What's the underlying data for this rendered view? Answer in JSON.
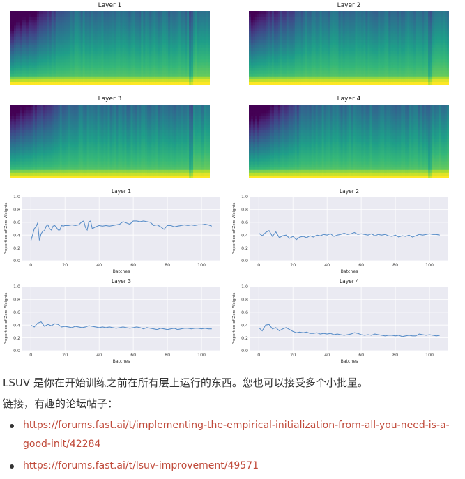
{
  "heatmaps": [
    {
      "title": "Layer 1"
    },
    {
      "title": "Layer 2"
    },
    {
      "title": "Layer 3"
    },
    {
      "title": "Layer 4"
    }
  ],
  "colors": {
    "line": "#5b8fc9",
    "chart_bg": "#eaeaf2",
    "text": "#333333",
    "link": "#c04a3a",
    "viridis_dark": "#440154",
    "viridis_mid": "#21918c",
    "viridis_light": "#fde725"
  },
  "chart_data": [
    {
      "type": "line",
      "title": "Layer 1",
      "xlabel": "Batches",
      "ylabel": "Proportion of Zero Weights",
      "xlim": [
        -5,
        111
      ],
      "ylim": [
        0.0,
        1.0
      ],
      "xticks": [
        0,
        20,
        40,
        60,
        80,
        100
      ],
      "yticks": [
        0.0,
        0.2,
        0.4,
        0.6,
        0.8,
        1.0
      ],
      "x": [
        0,
        1,
        2,
        3,
        4,
        5,
        6,
        7,
        8,
        9,
        10,
        11,
        12,
        13,
        14,
        15,
        16,
        17,
        18,
        19,
        20,
        22,
        24,
        26,
        28,
        30,
        31,
        32,
        33,
        34,
        35,
        36,
        38,
        40,
        42,
        44,
        46,
        48,
        50,
        52,
        54,
        56,
        58,
        60,
        62,
        64,
        66,
        68,
        70,
        72,
        74,
        76,
        78,
        80,
        82,
        84,
        86,
        88,
        90,
        92,
        94,
        96,
        98,
        100,
        102,
        104,
        106
      ],
      "y": [
        0.31,
        0.4,
        0.5,
        0.53,
        0.59,
        0.32,
        0.42,
        0.46,
        0.47,
        0.54,
        0.56,
        0.5,
        0.48,
        0.54,
        0.55,
        0.52,
        0.48,
        0.48,
        0.55,
        0.54,
        0.55,
        0.55,
        0.56,
        0.55,
        0.56,
        0.61,
        0.62,
        0.52,
        0.48,
        0.61,
        0.62,
        0.5,
        0.53,
        0.55,
        0.54,
        0.55,
        0.54,
        0.55,
        0.56,
        0.57,
        0.61,
        0.59,
        0.57,
        0.62,
        0.62,
        0.61,
        0.62,
        0.61,
        0.6,
        0.55,
        0.56,
        0.53,
        0.49,
        0.55,
        0.55,
        0.53,
        0.54,
        0.55,
        0.56,
        0.55,
        0.56,
        0.55,
        0.56,
        0.56,
        0.57,
        0.56,
        0.54
      ]
    },
    {
      "type": "line",
      "title": "Layer 2",
      "xlabel": "Batches",
      "ylabel": "Proportion of Zero Weights",
      "xlim": [
        -5,
        111
      ],
      "ylim": [
        0.0,
        1.0
      ],
      "xticks": [
        0,
        20,
        40,
        60,
        80,
        100
      ],
      "yticks": [
        0.0,
        0.2,
        0.4,
        0.6,
        0.8,
        1.0
      ],
      "x": [
        0,
        2,
        4,
        6,
        8,
        10,
        12,
        14,
        16,
        18,
        20,
        22,
        24,
        26,
        28,
        30,
        32,
        34,
        36,
        38,
        40,
        42,
        44,
        46,
        48,
        50,
        52,
        54,
        56,
        58,
        60,
        62,
        64,
        66,
        68,
        70,
        72,
        74,
        76,
        78,
        80,
        82,
        84,
        86,
        88,
        90,
        92,
        94,
        96,
        98,
        100,
        102,
        104,
        106
      ],
      "y": [
        0.43,
        0.39,
        0.44,
        0.47,
        0.38,
        0.45,
        0.36,
        0.39,
        0.4,
        0.35,
        0.38,
        0.33,
        0.37,
        0.38,
        0.36,
        0.39,
        0.37,
        0.4,
        0.39,
        0.41,
        0.4,
        0.42,
        0.38,
        0.4,
        0.41,
        0.43,
        0.41,
        0.42,
        0.44,
        0.41,
        0.42,
        0.41,
        0.4,
        0.42,
        0.39,
        0.41,
        0.4,
        0.41,
        0.39,
        0.38,
        0.4,
        0.37,
        0.39,
        0.38,
        0.4,
        0.37,
        0.39,
        0.41,
        0.4,
        0.41,
        0.42,
        0.41,
        0.41,
        0.4
      ]
    },
    {
      "type": "line",
      "title": "Layer 3",
      "xlabel": "Batches",
      "ylabel": "Proportion of Zero Weights",
      "xlim": [
        -5,
        111
      ],
      "ylim": [
        0.0,
        1.0
      ],
      "xticks": [
        0,
        20,
        40,
        60,
        80,
        100
      ],
      "yticks": [
        0.0,
        0.2,
        0.4,
        0.6,
        0.8,
        1.0
      ],
      "x": [
        0,
        2,
        4,
        6,
        8,
        10,
        12,
        14,
        16,
        18,
        20,
        22,
        24,
        26,
        28,
        30,
        32,
        34,
        36,
        38,
        40,
        42,
        44,
        46,
        48,
        50,
        52,
        54,
        56,
        58,
        60,
        62,
        64,
        66,
        68,
        70,
        72,
        74,
        76,
        78,
        80,
        82,
        84,
        86,
        88,
        90,
        92,
        94,
        96,
        98,
        100,
        102,
        104,
        106
      ],
      "y": [
        0.4,
        0.37,
        0.43,
        0.45,
        0.38,
        0.41,
        0.39,
        0.42,
        0.41,
        0.37,
        0.38,
        0.37,
        0.36,
        0.38,
        0.37,
        0.36,
        0.37,
        0.39,
        0.38,
        0.37,
        0.36,
        0.37,
        0.36,
        0.37,
        0.36,
        0.35,
        0.36,
        0.37,
        0.36,
        0.35,
        0.36,
        0.37,
        0.36,
        0.34,
        0.36,
        0.35,
        0.34,
        0.33,
        0.35,
        0.34,
        0.33,
        0.34,
        0.35,
        0.33,
        0.34,
        0.35,
        0.35,
        0.34,
        0.35,
        0.35,
        0.34,
        0.35,
        0.34,
        0.34
      ]
    },
    {
      "type": "line",
      "title": "Layer 4",
      "xlabel": "Batches",
      "ylabel": "Proportion of Zero Weights",
      "xlim": [
        -5,
        111
      ],
      "ylim": [
        0.0,
        1.0
      ],
      "xticks": [
        0,
        20,
        40,
        60,
        80,
        100
      ],
      "yticks": [
        0.0,
        0.2,
        0.4,
        0.6,
        0.8,
        1.0
      ],
      "x": [
        0,
        2,
        4,
        6,
        8,
        10,
        12,
        14,
        16,
        18,
        20,
        22,
        24,
        26,
        28,
        30,
        32,
        34,
        36,
        38,
        40,
        42,
        44,
        46,
        48,
        50,
        52,
        54,
        56,
        58,
        60,
        62,
        64,
        66,
        68,
        70,
        72,
        74,
        76,
        78,
        80,
        82,
        84,
        86,
        88,
        90,
        92,
        94,
        96,
        98,
        100,
        102,
        104,
        106
      ],
      "y": [
        0.36,
        0.31,
        0.4,
        0.41,
        0.34,
        0.36,
        0.31,
        0.34,
        0.36,
        0.33,
        0.3,
        0.28,
        0.29,
        0.28,
        0.29,
        0.27,
        0.27,
        0.28,
        0.26,
        0.27,
        0.26,
        0.27,
        0.25,
        0.26,
        0.25,
        0.24,
        0.25,
        0.26,
        0.28,
        0.27,
        0.25,
        0.24,
        0.25,
        0.24,
        0.26,
        0.25,
        0.24,
        0.23,
        0.24,
        0.24,
        0.23,
        0.24,
        0.22,
        0.23,
        0.24,
        0.23,
        0.23,
        0.26,
        0.25,
        0.24,
        0.25,
        0.24,
        0.23,
        0.24
      ]
    }
  ],
  "text": {
    "para1": "LSUV 是你在开始训练之前在所有层上运行的东西。您也可以接受多个小批量。",
    "para2": "链接，有趣的论坛帖子：",
    "links": [
      "https://forums.fast.ai/t/implementing-the-empirical-initialization-from-all-you-need-is-a-good-init/42284",
      "https://forums.fast.ai/t/lsuv-improvement/49571"
    ]
  }
}
